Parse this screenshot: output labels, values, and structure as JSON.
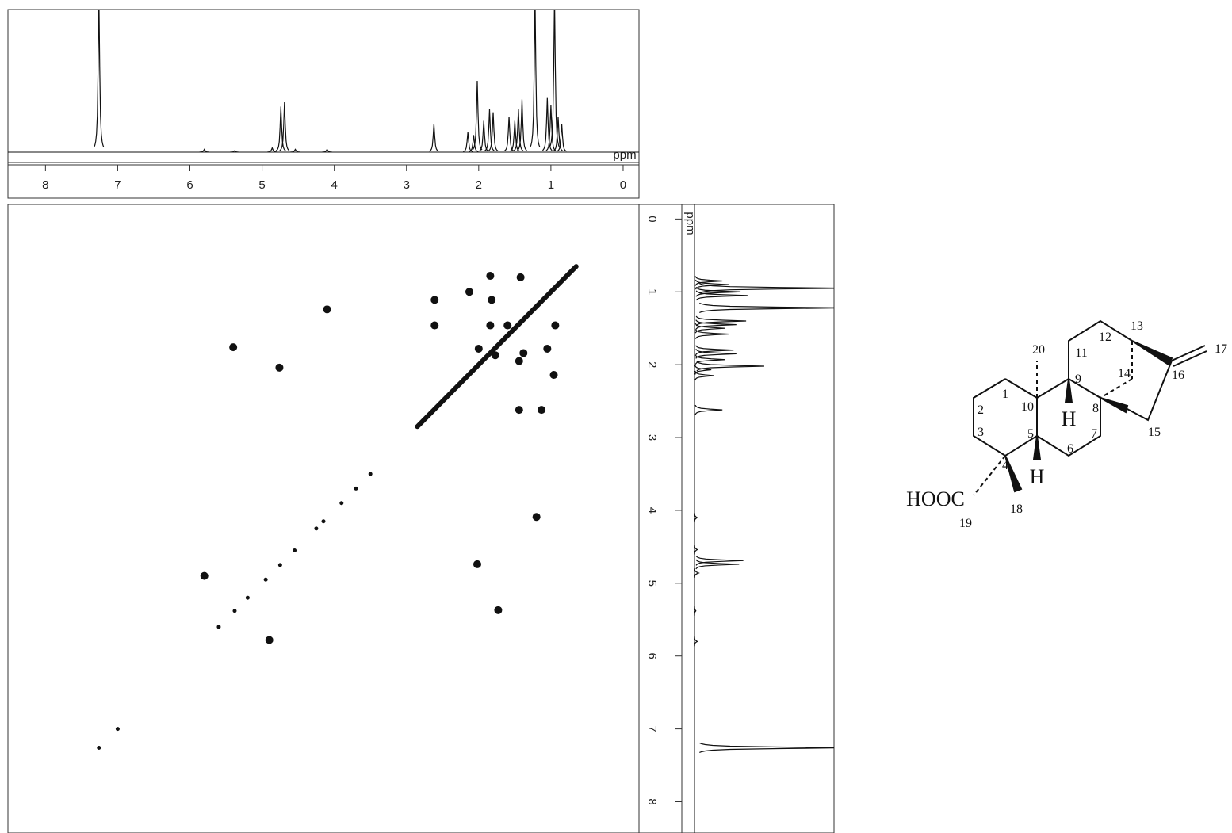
{
  "chart_data": {
    "type": "cosy",
    "x_label": "ppm",
    "y_label": "ppm",
    "xlim": [
      8.52,
      -0.22
    ],
    "xticks": [
      8,
      7,
      6,
      5,
      4,
      3,
      2,
      1,
      0
    ],
    "ylim": [
      -0.2,
      8.43
    ],
    "yticks": [
      0,
      1,
      2,
      3,
      4,
      5,
      6,
      7,
      8
    ],
    "color": "#111111",
    "peaks": [
      {
        "ppm": 7.26,
        "intensity": 110
      },
      {
        "ppm": 5.8,
        "intensity": 2
      },
      {
        "ppm": 5.38,
        "intensity": 1
      },
      {
        "ppm": 4.86,
        "intensity": 3
      },
      {
        "ppm": 4.74,
        "intensity": 32
      },
      {
        "ppm": 4.69,
        "intensity": 35
      },
      {
        "ppm": 4.54,
        "intensity": 2
      },
      {
        "ppm": 4.1,
        "intensity": 2
      },
      {
        "ppm": 2.62,
        "intensity": 20
      },
      {
        "ppm": 2.15,
        "intensity": 14
      },
      {
        "ppm": 2.07,
        "intensity": 12
      },
      {
        "ppm": 2.02,
        "intensity": 50
      },
      {
        "ppm": 1.93,
        "intensity": 22
      },
      {
        "ppm": 1.85,
        "intensity": 30
      },
      {
        "ppm": 1.8,
        "intensity": 28
      },
      {
        "ppm": 1.58,
        "intensity": 25
      },
      {
        "ppm": 1.5,
        "intensity": 22
      },
      {
        "ppm": 1.45,
        "intensity": 30
      },
      {
        "ppm": 1.4,
        "intensity": 37
      },
      {
        "ppm": 1.22,
        "intensity": 110
      },
      {
        "ppm": 1.05,
        "intensity": 38
      },
      {
        "ppm": 1.0,
        "intensity": 33
      },
      {
        "ppm": 0.95,
        "intensity": 110
      },
      {
        "ppm": 0.9,
        "intensity": 25
      },
      {
        "ppm": 0.85,
        "intensity": 20
      }
    ],
    "diagonal": [
      0.65,
      2.85
    ],
    "cross_peaks": [
      {
        "x": 2.61,
        "y": 1.11
      },
      {
        "x": 2.61,
        "y": 1.46
      },
      {
        "x": 1.84,
        "y": 0.78
      },
      {
        "x": 1.42,
        "y": 0.8
      },
      {
        "x": 2.13,
        "y": 1.0
      },
      {
        "x": 1.82,
        "y": 1.11
      },
      {
        "x": 1.84,
        "y": 1.46
      },
      {
        "x": 1.6,
        "y": 1.46
      },
      {
        "x": 0.94,
        "y": 1.46
      },
      {
        "x": 1.05,
        "y": 1.78
      },
      {
        "x": 1.38,
        "y": 1.84
      },
      {
        "x": 1.77,
        "y": 1.87
      },
      {
        "x": 0.96,
        "y": 2.14
      },
      {
        "x": 1.44,
        "y": 1.95
      },
      {
        "x": 2.0,
        "y": 1.78
      },
      {
        "x": 4.76,
        "y": 2.04
      },
      {
        "x": 2.02,
        "y": 4.74
      },
      {
        "x": 1.13,
        "y": 2.62
      },
      {
        "x": 1.44,
        "y": 2.62
      },
      {
        "x": 5.8,
        "y": 4.9
      },
      {
        "x": 4.9,
        "y": 5.78
      },
      {
        "x": 4.1,
        "y": 1.24
      },
      {
        "x": 5.4,
        "y": 1.76
      },
      {
        "x": 1.2,
        "y": 4.09
      },
      {
        "x": 1.73,
        "y": 5.37
      }
    ],
    "diagonal_peaks": [
      3.5,
      3.7,
      3.9,
      4.15,
      4.25,
      4.55,
      4.75,
      4.95,
      5.2,
      5.38,
      5.6,
      7.0,
      7.26
    ]
  },
  "structure": {
    "labels": [
      "HOOC",
      "19",
      "18",
      "1",
      "2",
      "3",
      "4",
      "5",
      "6",
      "7",
      "8",
      "9",
      "10",
      "11",
      "12",
      "13",
      "14",
      "15",
      "16",
      "17",
      "20",
      "H",
      "H"
    ]
  }
}
